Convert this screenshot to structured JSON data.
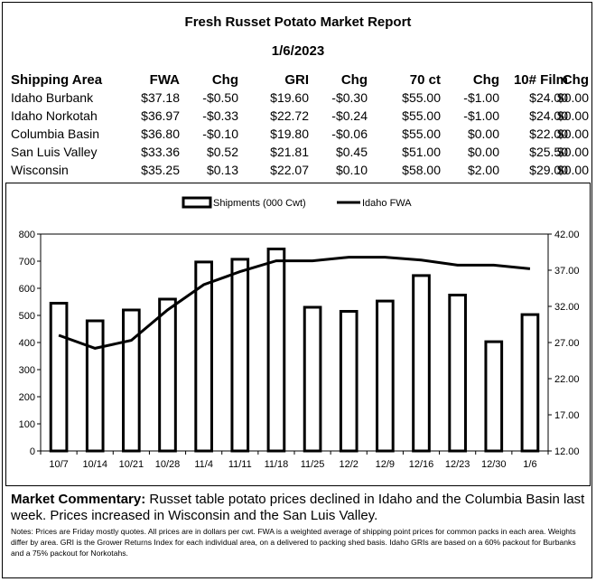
{
  "report": {
    "title": "Fresh Russet Potato Market Report",
    "date": "1/6/2023"
  },
  "table": {
    "headers": [
      "Shipping Area",
      "FWA",
      "Chg",
      "GRI",
      "Chg",
      "70 ct",
      "Chg",
      "10# Film",
      "Chg"
    ],
    "rows": [
      [
        "Idaho Burbank",
        "$37.18",
        "-$0.50",
        "$19.60",
        "-$0.30",
        "$55.00",
        "-$1.00",
        "$24.00",
        "$0.00"
      ],
      [
        "Idaho Norkotah",
        "$36.97",
        "-$0.33",
        "$22.72",
        "-$0.24",
        "$55.00",
        "-$1.00",
        "$24.00",
        "$0.00"
      ],
      [
        "Columbia Basin",
        "$36.80",
        "-$0.10",
        "$19.80",
        "-$0.06",
        "$55.00",
        "$0.00",
        "$22.00",
        "$0.00"
      ],
      [
        "San Luis Valley",
        "$33.36",
        "$0.52",
        "$21.81",
        "$0.45",
        "$51.00",
        "$0.00",
        "$25.50",
        "$0.00"
      ],
      [
        "Wisconsin",
        "$35.25",
        "$0.13",
        "$22.07",
        "$0.10",
        "$58.00",
        "$2.00",
        "$29.00",
        "$0.00"
      ]
    ]
  },
  "chart_data": {
    "type": "bar",
    "categories": [
      "10/7",
      "10/14",
      "10/21",
      "10/28",
      "11/4",
      "11/11",
      "11/18",
      "11/25",
      "12/2",
      "12/9",
      "12/16",
      "12/23",
      "12/30",
      "1/6"
    ],
    "series": [
      {
        "name": "Shipments (000 Cwt)",
        "type": "bar",
        "axis": "left",
        "values": [
          545,
          480,
          520,
          560,
          697,
          707,
          745,
          530,
          515,
          553,
          647,
          575,
          403,
          503
        ]
      },
      {
        "name": "Idaho FWA",
        "type": "line",
        "axis": "right",
        "values": [
          28.0,
          26.2,
          27.3,
          31.5,
          35.0,
          36.8,
          38.3,
          38.3,
          38.8,
          38.8,
          38.4,
          37.7,
          37.7,
          37.2
        ]
      }
    ],
    "ylim_left": [
      0,
      800
    ],
    "yticks_left": [
      "0",
      "100",
      "200",
      "300",
      "400",
      "500",
      "600",
      "700",
      "800"
    ],
    "ylim_right": [
      12,
      42
    ],
    "yticks_right": [
      "12.00",
      "17.00",
      "22.00",
      "27.00",
      "32.00",
      "37.00",
      "42.00"
    ],
    "legend_position": "top",
    "grid": false
  },
  "commentary": {
    "label": "Market Commentary:",
    "text": " Russet table potato prices declined in Idaho and the Columbia Basin last week. Prices increased in Wisconsin and the San Luis Valley."
  },
  "notes": "Notes: Prices are Friday mostly quotes. All prices are in dollars per cwt. FWA is a weighted average of shipping point prices for  common packs in each area. Weights differ by area. GRI is the Grower Returns Index for each individual area, on a delivered to packing shed basis. Idaho GRIs are based on a 60% packout for Burbanks and a 75% packout for Norkotahs."
}
